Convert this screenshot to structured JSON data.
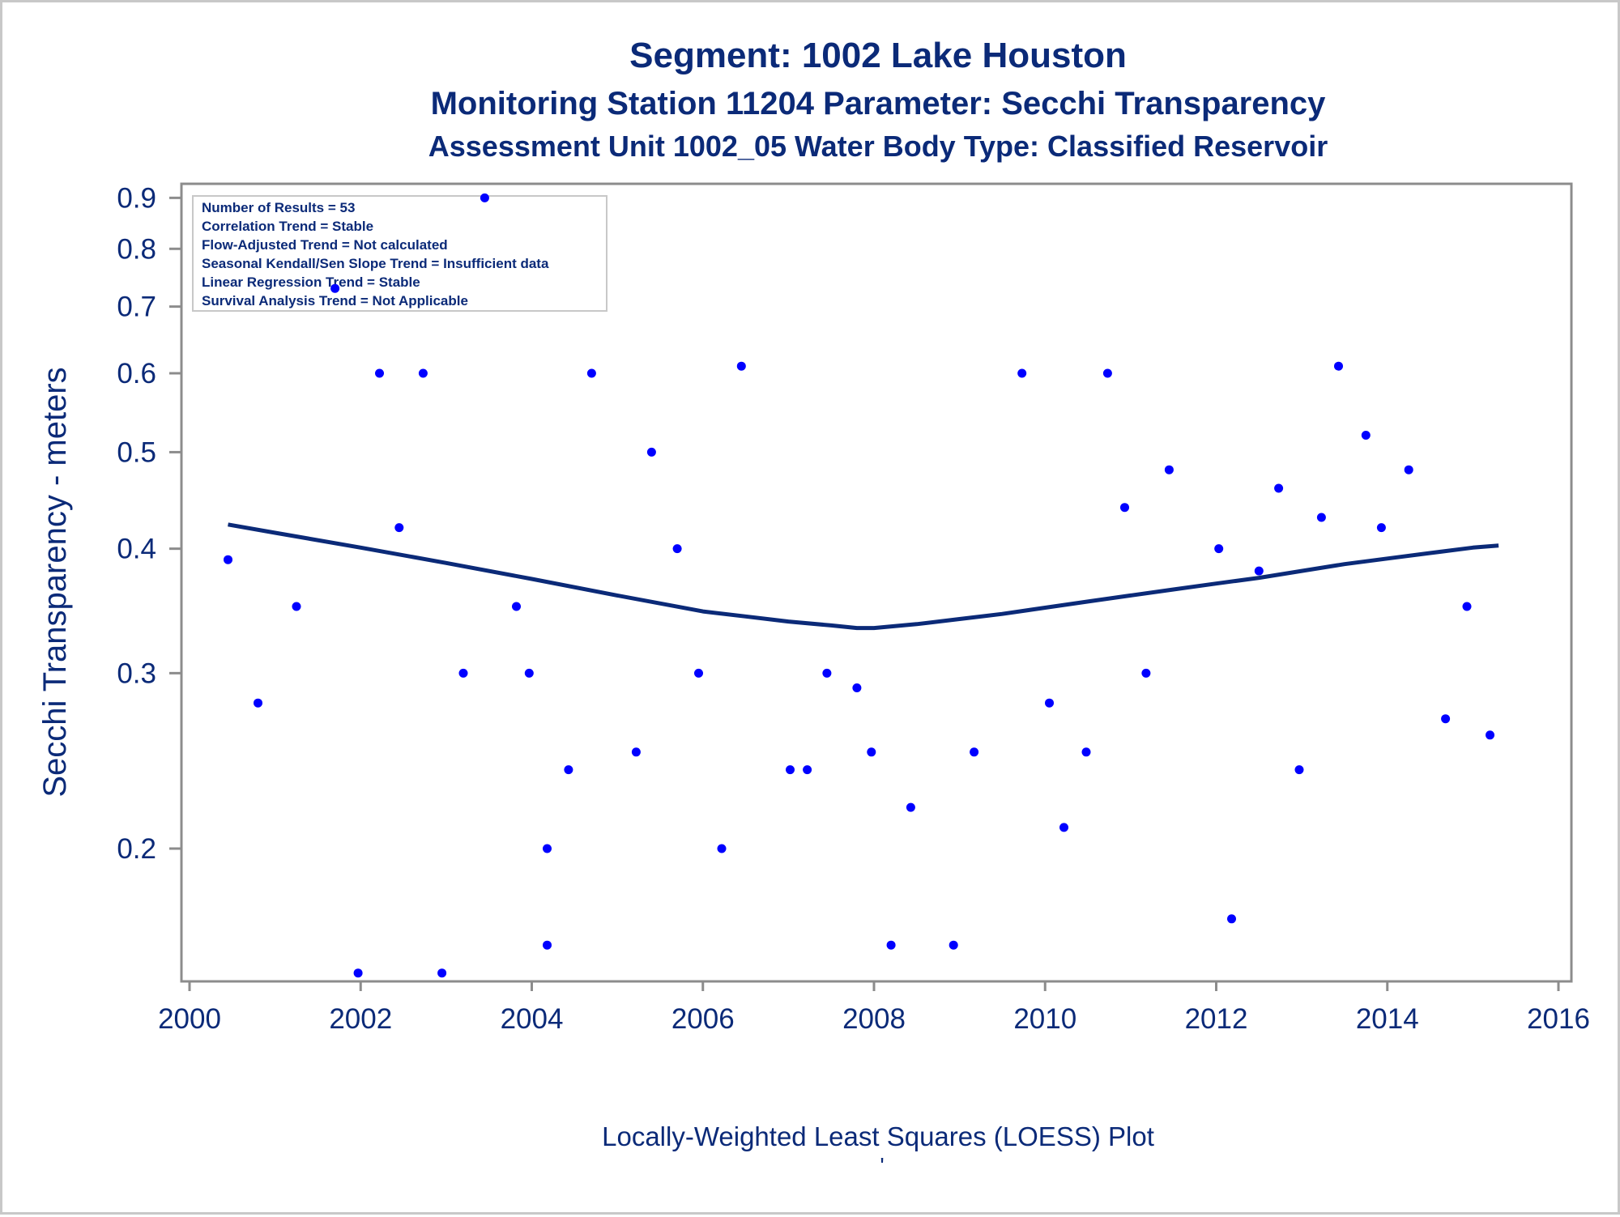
{
  "titles": {
    "line1": "Segment: 1002  Lake Houston",
    "line2": "Monitoring Station 11204 Parameter: Secchi Transparency",
    "line3": "Assessment Unit 1002_05   Water Body Type: Classified Reservoir"
  },
  "stats_box": [
    "Number of Results = 53",
    "Correlation Trend = Stable",
    "Flow-Adjusted Trend = Not calculated",
    "Seasonal Kendall/Sen Slope Trend = Insufficient data",
    "Linear Regression Trend = Stable",
    "Survival Analysis Trend = Not Applicable"
  ],
  "footnote": "Locally-Weighted Least Squares (LOESS) Plot",
  "footnote_mark": "'",
  "colors": {
    "text": "#0b2a78",
    "points": "#0000ff",
    "loess": "#0b2a78",
    "axis": "#8c8c8c"
  },
  "chart_data": {
    "type": "scatter",
    "title": "Segment: 1002  Lake Houston",
    "xlabel": "",
    "ylabel": "Secchi Transparency - meters",
    "y_scale": "log",
    "xlim": [
      2000,
      2016
    ],
    "ylim": [
      0.15,
      0.92
    ],
    "x_ticks": [
      "2000",
      "2002",
      "2004",
      "2006",
      "2008",
      "2010",
      "2012",
      "2014",
      "2016"
    ],
    "y_ticks": [
      "0.2",
      "0.3",
      "0.4",
      "0.5",
      "0.6",
      "0.7",
      "0.8",
      "0.9"
    ],
    "grid": false,
    "series": [
      {
        "kind": "points",
        "x": [
          2000.45,
          2000.8,
          2001.25,
          2001.7,
          2001.97,
          2002.22,
          2002.45,
          2002.73,
          2002.95,
          2003.2,
          2003.45,
          2003.82,
          2003.97,
          2004.18,
          2004.18,
          2004.43,
          2004.7,
          2005.22,
          2005.4,
          2005.7,
          2005.95,
          2006.22,
          2006.45,
          2007.02,
          2007.22,
          2007.45,
          2007.8,
          2007.97,
          2008.2,
          2008.43,
          2008.93,
          2009.17,
          2009.73,
          2010.05,
          2010.22,
          2010.48,
          2010.73,
          2010.93,
          2011.18,
          2011.45,
          2012.03,
          2012.18,
          2012.5,
          2012.73,
          2012.97,
          2013.23,
          2013.43,
          2013.75,
          2013.93,
          2014.25,
          2014.68,
          2014.93,
          2015.2
        ],
        "y": [
          0.39,
          0.28,
          0.35,
          0.73,
          0.15,
          0.6,
          0.42,
          0.6,
          0.15,
          0.3,
          0.9,
          0.35,
          0.3,
          0.2,
          0.16,
          0.24,
          0.6,
          0.25,
          0.5,
          0.4,
          0.3,
          0.2,
          0.61,
          0.24,
          0.24,
          0.3,
          0.29,
          0.25,
          0.16,
          0.22,
          0.16,
          0.25,
          0.6,
          0.28,
          0.21,
          0.25,
          0.6,
          0.44,
          0.3,
          0.48,
          0.4,
          0.17,
          0.38,
          0.46,
          0.24,
          0.43,
          0.61,
          0.52,
          0.42,
          0.48,
          0.27,
          0.35,
          0.26
        ]
      },
      {
        "kind": "loess",
        "x": [
          2000.45,
          2001.0,
          2002.0,
          2003.0,
          2004.0,
          2005.0,
          2006.0,
          2006.5,
          2007.0,
          2007.5,
          2007.8,
          2008.0,
          2008.5,
          2009.0,
          2009.5,
          2010.0,
          2010.5,
          2011.0,
          2011.5,
          2012.0,
          2012.5,
          2013.0,
          2013.5,
          2014.0,
          2014.5,
          2015.0,
          2015.3
        ],
        "y": [
          0.423,
          0.415,
          0.401,
          0.387,
          0.373,
          0.359,
          0.346,
          0.342,
          0.338,
          0.335,
          0.333,
          0.333,
          0.336,
          0.34,
          0.344,
          0.349,
          0.354,
          0.359,
          0.364,
          0.369,
          0.374,
          0.38,
          0.386,
          0.391,
          0.396,
          0.401,
          0.403
        ]
      }
    ]
  }
}
